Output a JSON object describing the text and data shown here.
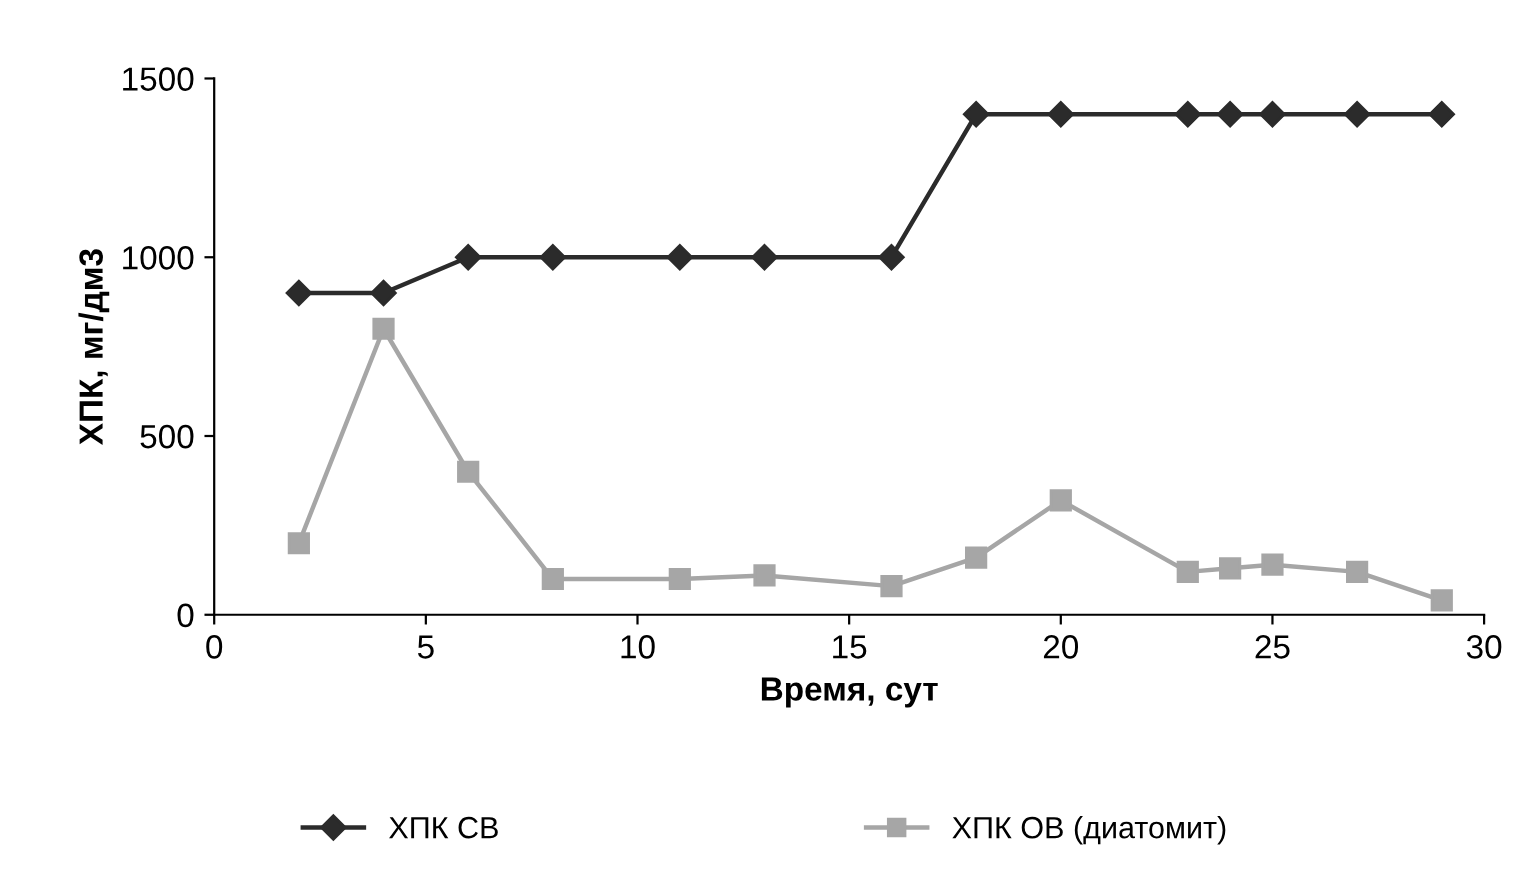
{
  "chart_data": {
    "type": "line",
    "xlabel": "Время, сут",
    "ylabel": "ХПК, мг/дм3",
    "x": [
      2,
      4,
      6,
      8,
      11,
      13,
      16,
      18,
      20,
      23,
      24,
      25,
      27,
      29
    ],
    "series": [
      {
        "name": "ХПК СВ",
        "color": "#2b2b2b",
        "marker": "diamond",
        "values": [
          900,
          900,
          1000,
          1000,
          1000,
          1000,
          1000,
          1400,
          1400,
          1400,
          1400,
          1400,
          1400,
          1400
        ]
      },
      {
        "name": "ХПК ОВ (диатомит)",
        "color": "#a6a6a6",
        "marker": "square",
        "values": [
          200,
          800,
          400,
          100,
          100,
          110,
          80,
          160,
          320,
          120,
          130,
          140,
          120,
          40
        ]
      }
    ],
    "xlim": [
      0,
      30
    ],
    "xticks": [
      0,
      5,
      10,
      15,
      20,
      25,
      30
    ],
    "ylim": [
      0,
      1500
    ],
    "yticks": [
      0,
      500,
      1000,
      1500
    ],
    "grid": false,
    "legend": "bottom",
    "line_style": "solid"
  }
}
